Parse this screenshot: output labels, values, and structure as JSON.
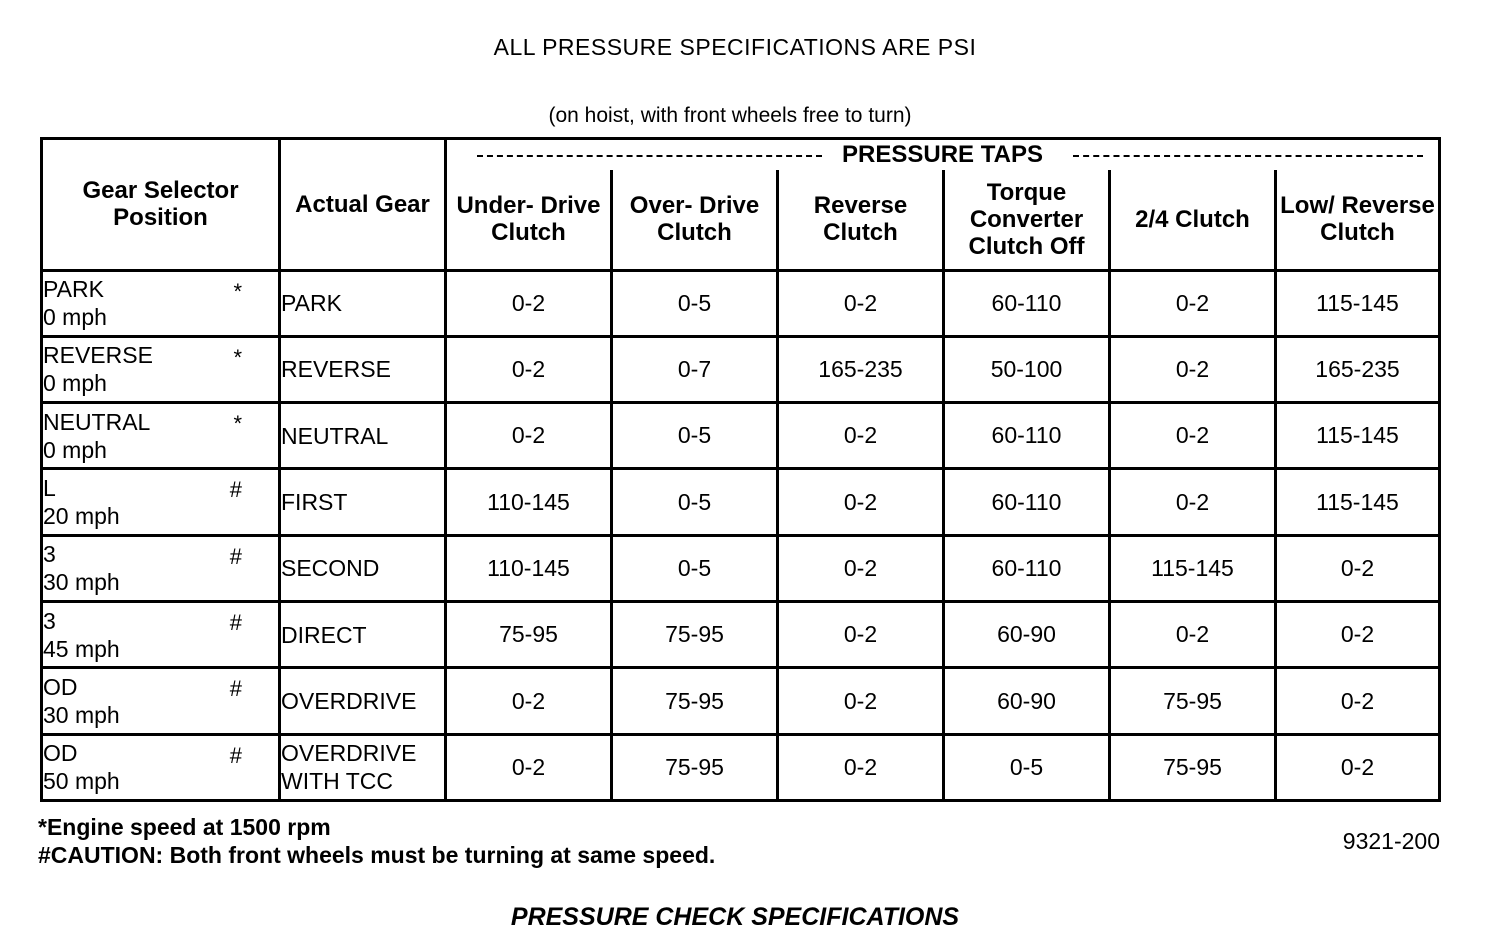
{
  "title": "ALL PRESSURE SPECIFICATIONS ARE PSI",
  "subtitle": "(on hoist, with front wheels free to turn)",
  "group_header": "PRESSURE TAPS",
  "headers": {
    "selector": "Gear Selector Position",
    "actual": "Actual Gear",
    "taps": [
      "Under- Drive Clutch",
      "Over- Drive Clutch",
      "Reverse Clutch",
      "Torque Converter Clutch Off",
      "2/4 Clutch",
      "Low/ Reverse Clutch"
    ]
  },
  "rows": [
    {
      "position": "PARK",
      "speed": "0 mph",
      "mark": "*",
      "gear": "PARK",
      "values": [
        "0-2",
        "0-5",
        "0-2",
        "60-110",
        "0-2",
        "115-145"
      ]
    },
    {
      "position": "REVERSE",
      "speed": "0 mph",
      "mark": "*",
      "gear": "REVERSE",
      "values": [
        "0-2",
        "0-7",
        "165-235",
        "50-100",
        "0-2",
        "165-235"
      ]
    },
    {
      "position": "NEUTRAL",
      "speed": "0 mph",
      "mark": "*",
      "gear": "NEUTRAL",
      "values": [
        "0-2",
        "0-5",
        "0-2",
        "60-110",
        "0-2",
        "115-145"
      ]
    },
    {
      "position": "L",
      "speed": "20 mph",
      "mark": "#",
      "gear": "FIRST",
      "values": [
        "110-145",
        "0-5",
        "0-2",
        "60-110",
        "0-2",
        "115-145"
      ]
    },
    {
      "position": "3",
      "speed": "30 mph",
      "mark": "#",
      "gear": "SECOND",
      "values": [
        "110-145",
        "0-5",
        "0-2",
        "60-110",
        "115-145",
        "0-2"
      ]
    },
    {
      "position": "3",
      "speed": "45 mph",
      "mark": "#",
      "gear": "DIRECT",
      "values": [
        "75-95",
        "75-95",
        "0-2",
        "60-90",
        "0-2",
        "0-2"
      ]
    },
    {
      "position": "OD",
      "speed": "30 mph",
      "mark": "#",
      "gear": "OVERDRIVE",
      "values": [
        "0-2",
        "75-95",
        "0-2",
        "60-90",
        "75-95",
        "0-2"
      ]
    },
    {
      "position": "OD",
      "speed": "50 mph",
      "mark": "#",
      "gear": "OVERDRIVE WITH TCC",
      "values": [
        "0-2",
        "75-95",
        "0-2",
        "0-5",
        "75-95",
        "0-2"
      ]
    }
  ],
  "notes": [
    "*Engine speed at 1500 rpm",
    "#CAUTION: Both front wheels must be turning at same speed."
  ],
  "figure_code": "9321-200",
  "footer": "PRESSURE CHECK SPECIFICATIONS"
}
